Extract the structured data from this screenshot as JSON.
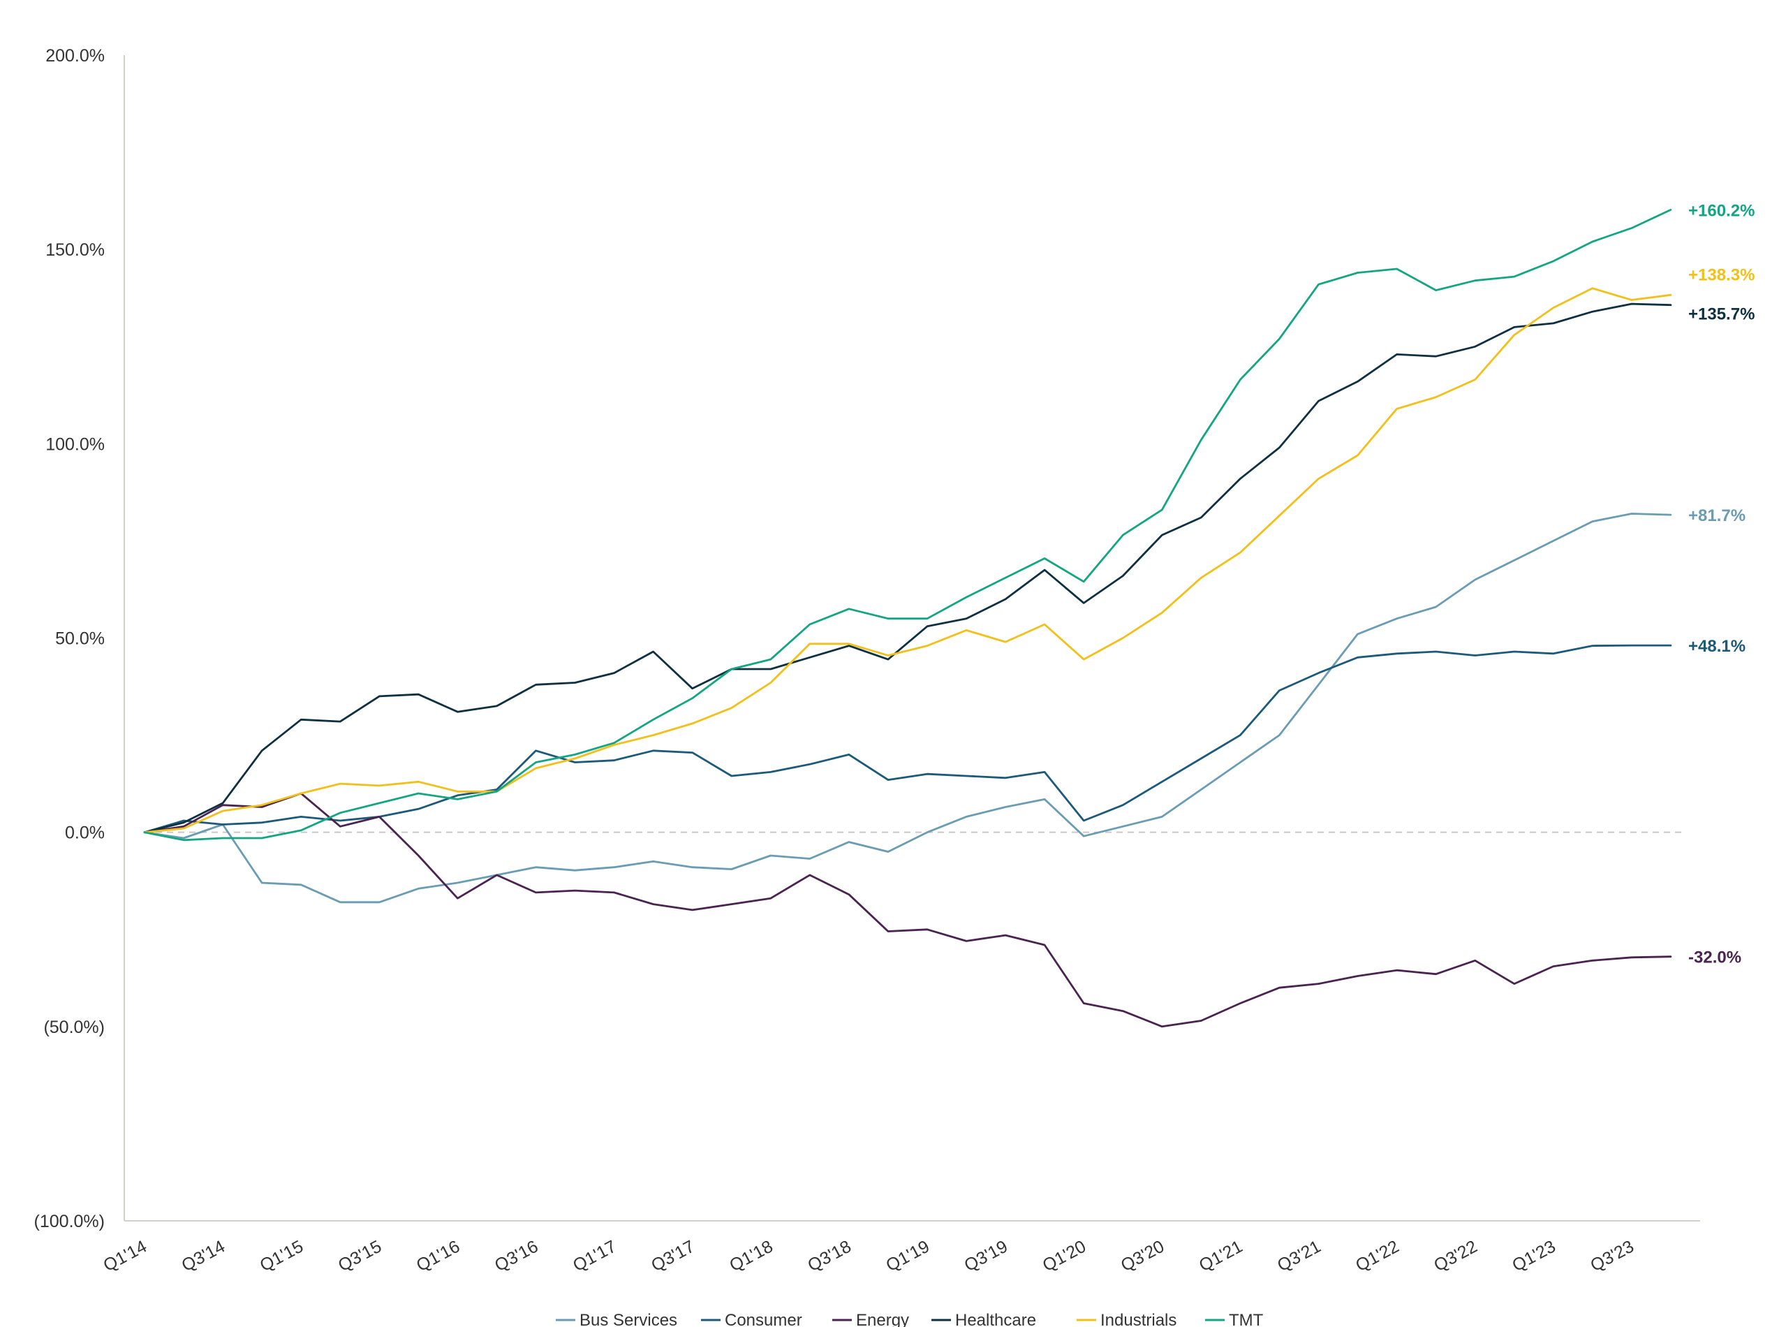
{
  "chart_data": {
    "type": "line",
    "title": "",
    "xlabel": "",
    "ylabel": "",
    "ylim": [
      -100,
      200
    ],
    "y_ticks": [
      200,
      150,
      100,
      50,
      0,
      -50,
      -100
    ],
    "y_tick_labels": [
      "200.0%",
      "150.0%",
      "100.0%",
      "50.0%",
      "0.0%",
      "(50.0%)",
      "(100.0%)"
    ],
    "x_categories": [
      "Q1'14",
      "Q2'14",
      "Q3'14",
      "Q4'14",
      "Q1'15",
      "Q2'15",
      "Q3'15",
      "Q4'15",
      "Q1'16",
      "Q2'16",
      "Q3'16",
      "Q4'16",
      "Q1'17",
      "Q2'17",
      "Q3'17",
      "Q4'17",
      "Q1'18",
      "Q2'18",
      "Q3'18",
      "Q4'18",
      "Q1'19",
      "Q2'19",
      "Q3'19",
      "Q4'19",
      "Q1'20",
      "Q2'20",
      "Q3'20",
      "Q4'20",
      "Q1'21",
      "Q2'21",
      "Q3'21",
      "Q4'21",
      "Q1'22",
      "Q2'22",
      "Q3'22",
      "Q4'22",
      "Q1'23",
      "Q2'23",
      "Q3'23",
      "Q4'23"
    ],
    "x_tick_labels": [
      "Q1'14",
      "Q3'14",
      "Q1'15",
      "Q3'15",
      "Q1'16",
      "Q3'16",
      "Q1'17",
      "Q3'17",
      "Q1'18",
      "Q3'18",
      "Q1'19",
      "Q3'19",
      "Q1'20",
      "Q3'20",
      "Q1'21",
      "Q3'21",
      "Q1'22",
      "Q3'22",
      "Q1'23",
      "Q3'23"
    ],
    "grid": false,
    "zero_line": "dashed",
    "legend_position": "bottom-center",
    "series": [
      {
        "name": "Bus Services",
        "color": "#6a9cb3",
        "end_label": "+81.7%",
        "values": [
          0,
          -1.5,
          2,
          -13,
          -13.5,
          -18,
          -18,
          -14.5,
          -13,
          -11,
          -9,
          -9.8,
          -9,
          -7.5,
          -9,
          -9.5,
          -6,
          -6.8,
          -2.5,
          -5,
          0,
          4,
          6.5,
          8.5,
          -1,
          1.5,
          4,
          11,
          18,
          25,
          38,
          51,
          55,
          58,
          65,
          70,
          75,
          80,
          82,
          81.7
        ]
      },
      {
        "name": "Consumer",
        "color": "#1b5a7a",
        "end_label": "+48.1%",
        "values": [
          0,
          3,
          2,
          2.5,
          4,
          3,
          4,
          6,
          9.5,
          11,
          21,
          18,
          18.5,
          21,
          20.5,
          14.5,
          15.5,
          17.5,
          20,
          13.5,
          15,
          14.5,
          14,
          15.5,
          3,
          7,
          13,
          19,
          25,
          36.5,
          41,
          45,
          46,
          46.5,
          45.5,
          46.5,
          46,
          48,
          48.1,
          48.1
        ]
      },
      {
        "name": "Energy",
        "color": "#4a2350",
        "end_label": "-32.0%",
        "values": [
          0,
          1.5,
          7,
          6.5,
          10,
          1.5,
          4,
          -6,
          -17,
          -11,
          -15.5,
          -15,
          -15.5,
          -18.5,
          -20,
          -18.5,
          -17,
          -11,
          -16,
          -25.5,
          -25,
          -28,
          -26.5,
          -29,
          -44,
          -46,
          -50,
          -48.5,
          -44,
          -40,
          -39,
          -37,
          -35.5,
          -36.5,
          -33,
          -39,
          -34.5,
          -33,
          -32.2,
          -32.0
        ]
      },
      {
        "name": "Healthcare",
        "color": "#0f3040",
        "end_label": "+135.7%",
        "values": [
          0,
          2.5,
          7.5,
          21,
          29,
          28.5,
          35,
          35.5,
          31,
          32.5,
          38,
          38.5,
          41,
          46.5,
          37,
          42,
          42,
          45,
          48,
          44.5,
          53,
          55,
          60,
          67.5,
          59,
          66,
          76.5,
          81,
          91,
          99,
          111,
          116,
          123,
          122.5,
          125,
          130,
          131,
          134,
          136,
          135.7
        ]
      },
      {
        "name": "Industrials",
        "color": "#f2c01b",
        "end_label": "+138.3%",
        "values": [
          0,
          1,
          5.5,
          7,
          10,
          12.5,
          12,
          13,
          10.5,
          10.5,
          16.5,
          19,
          22.5,
          25,
          28,
          32,
          38.5,
          48.5,
          48.5,
          45.5,
          48,
          52,
          49,
          53.5,
          44.5,
          50,
          56.5,
          65.5,
          72,
          81.5,
          91,
          97,
          109,
          112,
          116.5,
          128,
          135,
          140,
          137,
          138.3
        ]
      },
      {
        "name": "TMT",
        "color": "#14a582",
        "end_label": "+160.2%",
        "values": [
          0,
          -2,
          -1.5,
          -1.5,
          0.5,
          5,
          7.5,
          10,
          8.5,
          10.5,
          18,
          20,
          23,
          29,
          34.5,
          42,
          44.5,
          53.5,
          57.5,
          55,
          55,
          60.5,
          65.5,
          70.5,
          64.5,
          76.5,
          83,
          101,
          116.5,
          127,
          141,
          144,
          145,
          139.5,
          142,
          143,
          147,
          152,
          155.5,
          160.2
        ]
      }
    ]
  }
}
